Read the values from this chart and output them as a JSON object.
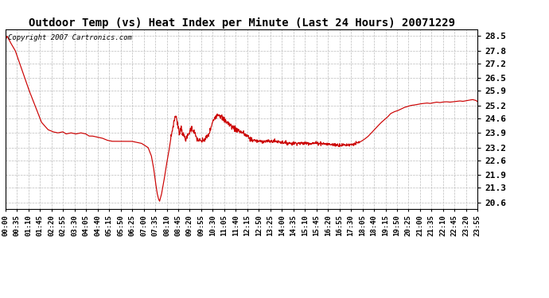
{
  "title": "Outdoor Temp (vs) Heat Index per Minute (Last 24 Hours) 20071229",
  "copyright_text": "Copyright 2007 Cartronics.com",
  "line_color": "#cc0000",
  "background_color": "#ffffff",
  "grid_color": "#bbbbbb",
  "yticks": [
    20.6,
    21.3,
    21.9,
    22.6,
    23.2,
    23.9,
    24.6,
    25.2,
    25.9,
    26.5,
    27.2,
    27.8,
    28.5
  ],
  "ylim": [
    20.3,
    28.8
  ],
  "xtick_labels": [
    "00:00",
    "00:35",
    "01:10",
    "01:45",
    "02:20",
    "02:55",
    "03:30",
    "04:05",
    "04:40",
    "05:15",
    "05:50",
    "06:25",
    "07:00",
    "07:35",
    "08:10",
    "08:45",
    "09:20",
    "09:55",
    "10:30",
    "11:05",
    "11:40",
    "12:15",
    "12:50",
    "13:25",
    "14:00",
    "14:35",
    "15:10",
    "15:45",
    "16:20",
    "16:55",
    "17:30",
    "18:05",
    "18:40",
    "19:15",
    "19:50",
    "20:25",
    "21:00",
    "21:35",
    "22:10",
    "22:45",
    "23:20",
    "23:55"
  ],
  "num_minutes": 1440,
  "keypoints": {
    "0": 28.3,
    "5": 28.5,
    "15": 28.2,
    "30": 27.8,
    "50": 26.9,
    "70": 26.0,
    "90": 25.2,
    "110": 24.4,
    "130": 24.05,
    "145": 23.95,
    "160": 23.9,
    "175": 23.95,
    "185": 23.85,
    "200": 23.9,
    "215": 23.85,
    "230": 23.9,
    "245": 23.85,
    "255": 23.75,
    "265": 23.75,
    "280": 23.7,
    "295": 23.65,
    "310": 23.55,
    "325": 23.5,
    "340": 23.5,
    "355": 23.5,
    "370": 23.5,
    "385": 23.5,
    "400": 23.45,
    "415": 23.4,
    "425": 23.3,
    "435": 23.2,
    "445": 22.8,
    "452": 22.2,
    "458": 21.5,
    "463": 21.0,
    "467": 20.75,
    "470": 20.65,
    "476": 21.0,
    "483": 21.6,
    "490": 22.3,
    "498": 23.0,
    "505": 23.7,
    "512": 24.3,
    "517": 24.65,
    "520": 24.75,
    "522": 24.55,
    "525": 24.3,
    "528": 24.05,
    "530": 23.9,
    "533": 24.05,
    "536": 24.15,
    "539": 23.95,
    "542": 23.8,
    "545": 23.75,
    "548": 23.65,
    "552": 23.6,
    "556": 23.75,
    "560": 23.9,
    "564": 24.05,
    "568": 24.1,
    "572": 24.05,
    "576": 23.9,
    "580": 23.75,
    "585": 23.6,
    "590": 23.55,
    "595": 23.5,
    "600": 23.5,
    "608": 23.6,
    "615": 23.7,
    "622": 23.9,
    "628": 24.2,
    "633": 24.45,
    "637": 24.6,
    "641": 24.7,
    "645": 24.75,
    "649": 24.8,
    "654": 24.75,
    "659": 24.65,
    "665": 24.55,
    "672": 24.45,
    "680": 24.35,
    "690": 24.2,
    "700": 24.1,
    "712": 24.0,
    "724": 23.9,
    "736": 23.75,
    "748": 23.6,
    "758": 23.55,
    "770": 23.5,
    "785": 23.5,
    "800": 23.5,
    "815": 23.5,
    "825": 23.5,
    "835": 23.48,
    "845": 23.45,
    "860": 23.42,
    "875": 23.4,
    "890": 23.42,
    "905": 23.4,
    "920": 23.42,
    "935": 23.4,
    "950": 23.42,
    "965": 23.4,
    "975": 23.38,
    "985": 23.36,
    "995": 23.35,
    "1010": 23.33,
    "1025": 23.32,
    "1040": 23.33,
    "1055": 23.35,
    "1065": 23.38,
    "1075": 23.42,
    "1085": 23.5,
    "1095": 23.6,
    "1105": 23.72,
    "1115": 23.88,
    "1125": 24.05,
    "1135": 24.22,
    "1145": 24.38,
    "1155": 24.52,
    "1165": 24.65,
    "1175": 24.82,
    "1185": 24.9,
    "1195": 24.95,
    "1205": 25.02,
    "1215": 25.1,
    "1225": 25.15,
    "1235": 25.2,
    "1245": 25.22,
    "1255": 25.25,
    "1265": 25.28,
    "1275": 25.3,
    "1285": 25.32,
    "1295": 25.3,
    "1305": 25.33,
    "1315": 25.36,
    "1325": 25.34,
    "1335": 25.37,
    "1345": 25.38,
    "1355": 25.36,
    "1365": 25.38,
    "1375": 25.4,
    "1385": 25.42,
    "1395": 25.4,
    "1405": 25.43,
    "1415": 25.46,
    "1425": 25.48,
    "1435": 25.44,
    "1440": 25.38
  }
}
